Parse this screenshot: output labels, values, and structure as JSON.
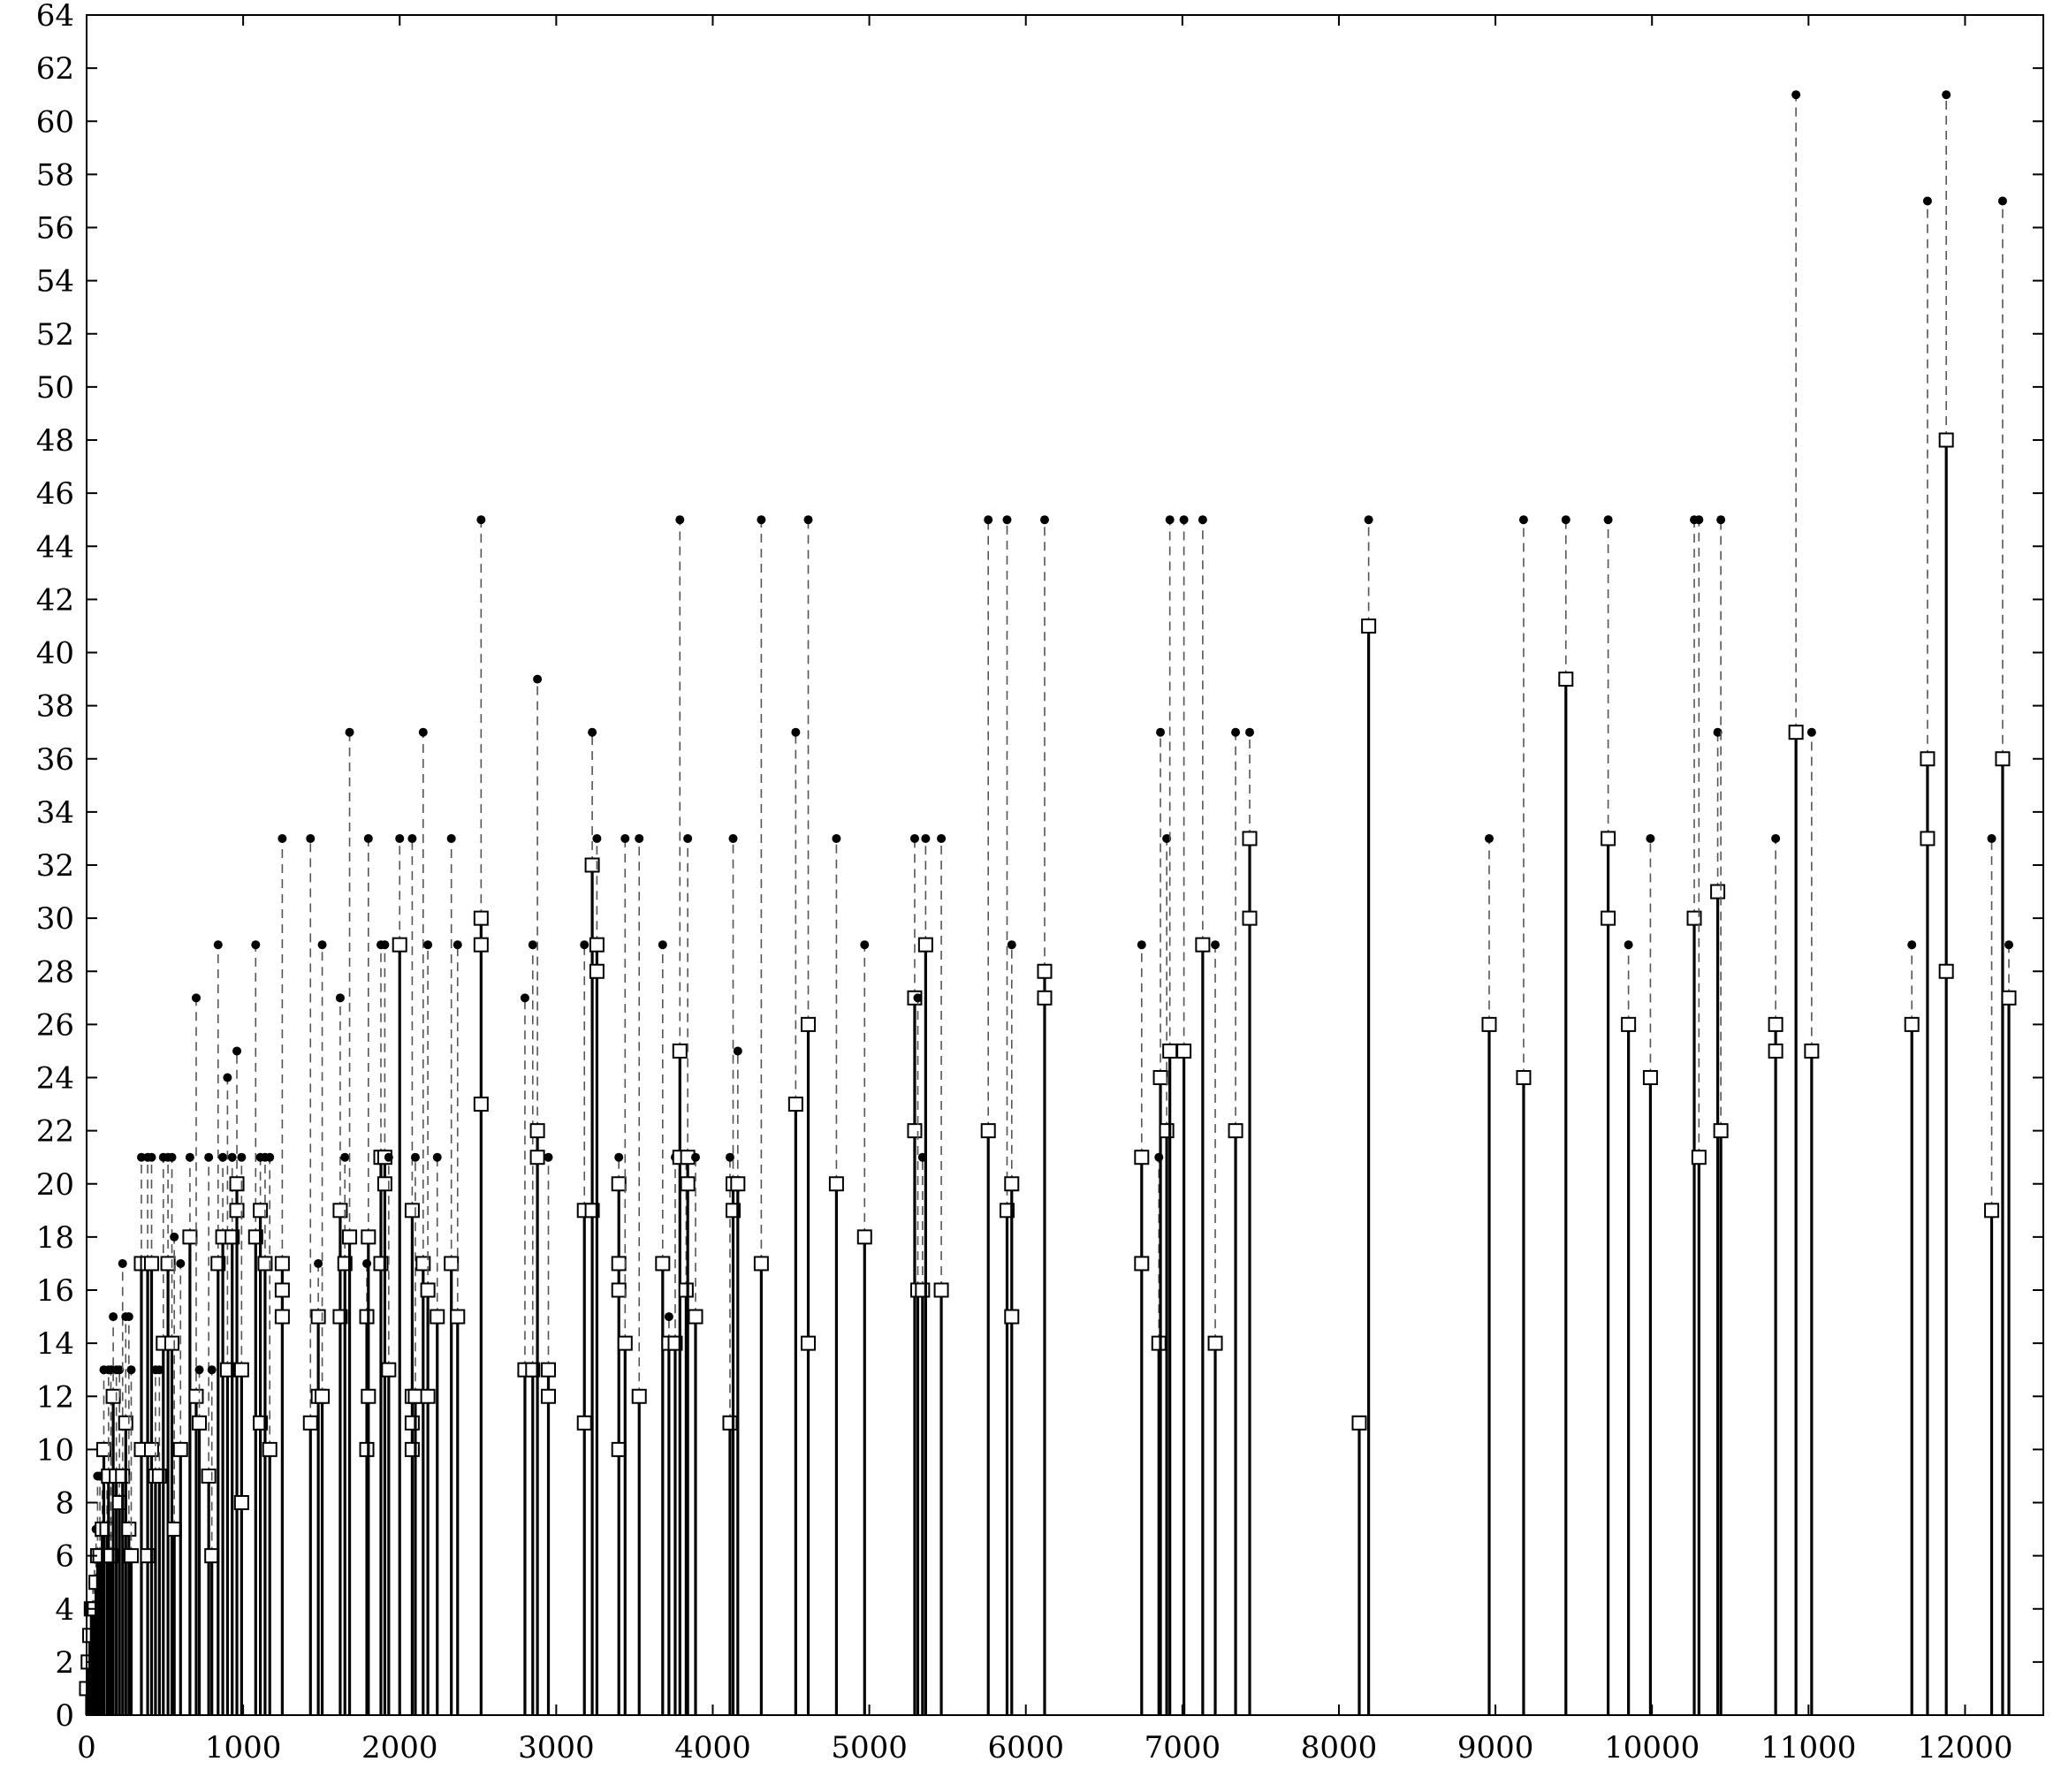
{
  "chart_data": {
    "type": "scatter",
    "title": "",
    "xlabel": "",
    "ylabel": "",
    "xlim": [
      0,
      12500
    ],
    "ylim": [
      0,
      64
    ],
    "x_ticks": [
      0,
      1000,
      2000,
      3000,
      4000,
      5000,
      6000,
      7000,
      8000,
      9000,
      10000,
      11000,
      12000
    ],
    "y_ticks": [
      0,
      2,
      4,
      6,
      8,
      10,
      12,
      14,
      16,
      18,
      20,
      22,
      24,
      26,
      28,
      30,
      32,
      34,
      36,
      38,
      40,
      42,
      44,
      46,
      48,
      50,
      52,
      54,
      56,
      58,
      60,
      62,
      64
    ],
    "grid": false,
    "legend": "none",
    "marker_styles": {
      "dot": "filled circle (upper value)",
      "square": "open square (lower values)",
      "stem": "solid vertical line from 0",
      "connector": "dashed vertical line"
    },
    "colors": {
      "ink": "#000000",
      "connector": "#555555",
      "square_fill": "#ffffff"
    },
    "points": [
      {
        "x": 0,
        "dot": 1,
        "squares": [
          1
        ]
      },
      {
        "x": 10,
        "dot": 2,
        "squares": [
          2
        ]
      },
      {
        "x": 20,
        "dot": 3,
        "squares": [
          3
        ]
      },
      {
        "x": 30,
        "dot": 4,
        "squares": [
          4
        ]
      },
      {
        "x": 40,
        "dot": 5,
        "squares": [
          4
        ]
      },
      {
        "x": 50,
        "dot": 6,
        "squares": [
          4
        ]
      },
      {
        "x": 60,
        "dot": 7,
        "squares": [
          5
        ]
      },
      {
        "x": 70,
        "dot": 9,
        "squares": [
          6
        ]
      },
      {
        "x": 85,
        "dot": 9,
        "squares": [
          6
        ]
      },
      {
        "x": 100,
        "dot": 9,
        "squares": [
          7
        ]
      },
      {
        "x": 110,
        "dot": 13,
        "squares": [
          10
        ]
      },
      {
        "x": 130,
        "dot": 9,
        "squares": [
          7
        ]
      },
      {
        "x": 140,
        "dot": 13,
        "squares": [
          9
        ]
      },
      {
        "x": 155,
        "dot": 13,
        "squares": [
          6
        ]
      },
      {
        "x": 170,
        "dot": 15,
        "squares": [
          12
        ]
      },
      {
        "x": 190,
        "dot": 13,
        "squares": [
          9
        ]
      },
      {
        "x": 210,
        "dot": 13,
        "squares": [
          8
        ]
      },
      {
        "x": 230,
        "dot": 17,
        "squares": [
          9
        ]
      },
      {
        "x": 250,
        "dot": 15,
        "squares": [
          11
        ]
      },
      {
        "x": 270,
        "dot": 15,
        "squares": [
          7
        ]
      },
      {
        "x": 285,
        "dot": 13,
        "squares": [
          6
        ]
      },
      {
        "x": 350,
        "dot": 21,
        "squares": [
          17,
          10
        ]
      },
      {
        "x": 390,
        "dot": 21,
        "squares": [
          17,
          6
        ]
      },
      {
        "x": 415,
        "dot": 21,
        "squares": [
          17,
          10
        ]
      },
      {
        "x": 440,
        "dot": 13,
        "squares": [
          9
        ]
      },
      {
        "x": 465,
        "dot": 13,
        "squares": [
          9
        ]
      },
      {
        "x": 490,
        "dot": 21,
        "squares": [
          14
        ]
      },
      {
        "x": 520,
        "dot": 21,
        "squares": [
          17
        ]
      },
      {
        "x": 545,
        "dot": 21,
        "squares": [
          14
        ]
      },
      {
        "x": 560,
        "dot": 18,
        "squares": [
          7
        ]
      },
      {
        "x": 600,
        "dot": 17,
        "squares": [
          10
        ]
      },
      {
        "x": 660,
        "dot": 21,
        "squares": [
          18
        ]
      },
      {
        "x": 700,
        "dot": 27,
        "squares": [
          12
        ]
      },
      {
        "x": 720,
        "dot": 13,
        "squares": [
          11
        ]
      },
      {
        "x": 780,
        "dot": 21,
        "squares": [
          9
        ]
      },
      {
        "x": 800,
        "dot": 13,
        "squares": [
          6
        ]
      },
      {
        "x": 840,
        "dot": 29,
        "squares": [
          17
        ]
      },
      {
        "x": 870,
        "dot": 21,
        "squares": [
          18
        ]
      },
      {
        "x": 900,
        "dot": 24,
        "squares": [
          13
        ]
      },
      {
        "x": 930,
        "dot": 21,
        "squares": [
          18
        ]
      },
      {
        "x": 960,
        "dot": 25,
        "squares": [
          20,
          19
        ]
      },
      {
        "x": 990,
        "dot": 21,
        "squares": [
          13,
          8
        ]
      },
      {
        "x": 1080,
        "dot": 29,
        "squares": [
          18
        ]
      },
      {
        "x": 1110,
        "dot": 21,
        "squares": [
          19,
          11
        ]
      },
      {
        "x": 1140,
        "dot": 21,
        "squares": [
          17
        ]
      },
      {
        "x": 1170,
        "dot": 21,
        "squares": [
          10
        ]
      },
      {
        "x": 1250,
        "dot": 33,
        "squares": [
          17,
          16,
          15
        ]
      },
      {
        "x": 1430,
        "dot": 33,
        "squares": [
          11
        ]
      },
      {
        "x": 1480,
        "dot": 17,
        "squares": [
          15,
          12
        ]
      },
      {
        "x": 1505,
        "dot": 29,
        "squares": [
          12
        ]
      },
      {
        "x": 1620,
        "dot": 27,
        "squares": [
          19,
          15
        ]
      },
      {
        "x": 1650,
        "dot": 21,
        "squares": [
          17
        ]
      },
      {
        "x": 1680,
        "dot": 37,
        "squares": [
          18
        ]
      },
      {
        "x": 1790,
        "dot": 17,
        "squares": [
          15,
          10
        ]
      },
      {
        "x": 1800,
        "dot": 33,
        "squares": [
          18,
          12
        ]
      },
      {
        "x": 1880,
        "dot": 29,
        "squares": [
          21,
          17
        ]
      },
      {
        "x": 1905,
        "dot": 29,
        "squares": [
          21,
          20
        ]
      },
      {
        "x": 1930,
        "dot": 21,
        "squares": [
          13
        ]
      },
      {
        "x": 2000,
        "dot": 33,
        "squares": [
          29
        ]
      },
      {
        "x": 2080,
        "dot": 33,
        "squares": [
          19,
          12,
          11,
          10
        ]
      },
      {
        "x": 2100,
        "dot": 21,
        "squares": [
          12
        ]
      },
      {
        "x": 2150,
        "dot": 37,
        "squares": [
          17
        ]
      },
      {
        "x": 2180,
        "dot": 29,
        "squares": [
          16,
          12
        ]
      },
      {
        "x": 2240,
        "dot": 21,
        "squares": [
          15
        ]
      },
      {
        "x": 2330,
        "dot": 33,
        "squares": [
          17
        ]
      },
      {
        "x": 2370,
        "dot": 29,
        "squares": [
          15
        ]
      },
      {
        "x": 2520,
        "dot": 45,
        "squares": [
          30,
          29,
          23
        ]
      },
      {
        "x": 2800,
        "dot": 27,
        "squares": [
          13
        ]
      },
      {
        "x": 2850,
        "dot": 29,
        "squares": [
          13
        ]
      },
      {
        "x": 2880,
        "dot": 39,
        "squares": [
          22,
          21
        ]
      },
      {
        "x": 2950,
        "dot": 21,
        "squares": [
          13,
          12
        ]
      },
      {
        "x": 3180,
        "dot": 29,
        "squares": [
          19,
          11
        ]
      },
      {
        "x": 3230,
        "dot": 37,
        "squares": [
          32,
          19
        ]
      },
      {
        "x": 3260,
        "dot": 33,
        "squares": [
          29,
          28
        ]
      },
      {
        "x": 3400,
        "dot": 21,
        "squares": [
          20,
          17,
          16,
          10
        ]
      },
      {
        "x": 3440,
        "dot": 33,
        "squares": [
          14
        ]
      },
      {
        "x": 3530,
        "dot": 33,
        "squares": [
          12
        ]
      },
      {
        "x": 3680,
        "dot": 29,
        "squares": [
          17
        ]
      },
      {
        "x": 3720,
        "dot": 15,
        "squares": [
          14
        ]
      },
      {
        "x": 3760,
        "dot": 21,
        "squares": [
          14
        ]
      },
      {
        "x": 3790,
        "dot": 45,
        "squares": [
          25,
          21
        ]
      },
      {
        "x": 3830,
        "dot": 21,
        "squares": [
          16
        ]
      },
      {
        "x": 3840,
        "dot": 33,
        "squares": [
          21,
          20
        ]
      },
      {
        "x": 3890,
        "dot": 21,
        "squares": [
          15
        ]
      },
      {
        "x": 4110,
        "dot": 21,
        "squares": [
          11
        ]
      },
      {
        "x": 4130,
        "dot": 33,
        "squares": [
          20,
          19
        ]
      },
      {
        "x": 4160,
        "dot": 25,
        "squares": [
          20
        ]
      },
      {
        "x": 4310,
        "dot": 45,
        "squares": [
          17
        ]
      },
      {
        "x": 4530,
        "dot": 37,
        "squares": [
          23
        ]
      },
      {
        "x": 4610,
        "dot": 45,
        "squares": [
          26,
          14
        ]
      },
      {
        "x": 4790,
        "dot": 33,
        "squares": [
          20
        ]
      },
      {
        "x": 4970,
        "dot": 29,
        "squares": [
          18
        ]
      },
      {
        "x": 5290,
        "dot": 33,
        "squares": [
          27,
          22
        ]
      },
      {
        "x": 5310,
        "dot": 27,
        "squares": [
          16
        ]
      },
      {
        "x": 5340,
        "dot": 21,
        "squares": [
          16
        ]
      },
      {
        "x": 5360,
        "dot": 33,
        "squares": [
          29
        ]
      },
      {
        "x": 5460,
        "dot": 33,
        "squares": [
          16
        ]
      },
      {
        "x": 5760,
        "dot": 45,
        "squares": [
          22
        ]
      },
      {
        "x": 5880,
        "dot": 45,
        "squares": [
          19
        ]
      },
      {
        "x": 5910,
        "dot": 29,
        "squares": [
          20,
          15
        ]
      },
      {
        "x": 6120,
        "dot": 45,
        "squares": [
          28,
          27
        ]
      },
      {
        "x": 6740,
        "dot": 29,
        "squares": [
          21,
          17
        ]
      },
      {
        "x": 6850,
        "dot": 21,
        "squares": [
          14
        ]
      },
      {
        "x": 6860,
        "dot": 37,
        "squares": [
          24
        ]
      },
      {
        "x": 6900,
        "dot": 33,
        "squares": [
          22
        ]
      },
      {
        "x": 6920,
        "dot": 45,
        "squares": [
          25
        ]
      },
      {
        "x": 7010,
        "dot": 45,
        "squares": [
          25
        ]
      },
      {
        "x": 7130,
        "dot": 45,
        "squares": [
          29
        ]
      },
      {
        "x": 7210,
        "dot": 29,
        "squares": [
          14
        ]
      },
      {
        "x": 7340,
        "dot": 37,
        "squares": [
          22
        ]
      },
      {
        "x": 7430,
        "dot": 37,
        "squares": [
          33,
          30
        ]
      },
      {
        "x": 8130,
        "dot": 11,
        "squares": [
          11
        ]
      },
      {
        "x": 8190,
        "dot": 45,
        "squares": [
          41
        ]
      },
      {
        "x": 8960,
        "dot": 33,
        "squares": [
          26
        ]
      },
      {
        "x": 9180,
        "dot": 45,
        "squares": [
          24
        ]
      },
      {
        "x": 9450,
        "dot": 45,
        "squares": [
          39
        ]
      },
      {
        "x": 9720,
        "dot": 45,
        "squares": [
          33,
          30
        ]
      },
      {
        "x": 9850,
        "dot": 29,
        "squares": [
          26
        ]
      },
      {
        "x": 9990,
        "dot": 33,
        "squares": [
          24
        ]
      },
      {
        "x": 10270,
        "dot": 45,
        "squares": [
          30
        ]
      },
      {
        "x": 10300,
        "dot": 45,
        "squares": [
          21
        ]
      },
      {
        "x": 10420,
        "dot": 37,
        "squares": [
          31
        ]
      },
      {
        "x": 10440,
        "dot": 45,
        "squares": [
          22
        ]
      },
      {
        "x": 10790,
        "dot": 33,
        "squares": [
          26,
          25
        ]
      },
      {
        "x": 10920,
        "dot": 61,
        "squares": [
          37
        ]
      },
      {
        "x": 11020,
        "dot": 37,
        "squares": [
          25
        ]
      },
      {
        "x": 11660,
        "dot": 29,
        "squares": [
          26
        ]
      },
      {
        "x": 11760,
        "dot": 57,
        "squares": [
          36,
          33
        ]
      },
      {
        "x": 11880,
        "dot": 61,
        "squares": [
          48,
          28
        ]
      },
      {
        "x": 12170,
        "dot": 33,
        "squares": [
          19
        ]
      },
      {
        "x": 12240,
        "dot": 57,
        "squares": [
          36
        ]
      },
      {
        "x": 12280,
        "dot": 29,
        "squares": [
          27
        ]
      }
    ]
  }
}
